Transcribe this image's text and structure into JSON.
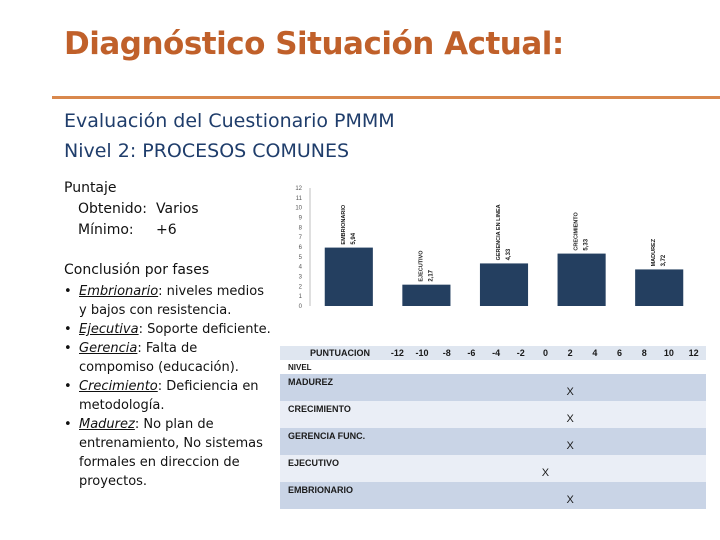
{
  "slide": {
    "title": "Diagnóstico Situación Actual:",
    "subtitle_line1": "Evaluación del Cuestionario PMMM",
    "subtitle_line2": "Nivel 2: PROCESOS COMUNES"
  },
  "score": {
    "heading": "Puntaje",
    "obtained_label": "Obtenido:",
    "obtained_value": "Varios",
    "min_label": "Mínimo:",
    "min_value": "+6"
  },
  "phases": {
    "heading": "Conclusión por fases",
    "items": [
      {
        "label": "Embrionario",
        "text": ": niveles medios y bajos con resistencia."
      },
      {
        "label": "Ejecutiva",
        "text": ": Soporte deficiente."
      },
      {
        "label": "Gerencia",
        "text": ": Falta de compomiso (educación)."
      },
      {
        "label": "Crecimiento",
        "text": ": Deficiencia en metodología."
      },
      {
        "label": "Madurez",
        "text": ": No plan de entrenamiento, No sistemas formales en direccion de proyectos."
      }
    ]
  },
  "chart_data": {
    "type": "bar",
    "title": "",
    "xlabel": "",
    "ylabel": "",
    "ylim": [
      0,
      12
    ],
    "yticks": [
      0,
      1,
      2,
      3,
      4,
      5,
      6,
      7,
      8,
      9,
      10,
      11,
      12
    ],
    "categories": [
      "EMBRIONARIO",
      "EJECUTIVO",
      "GERENCIA EN LINEA",
      "CRECIMIENTO",
      "MADUREZ"
    ],
    "values": [
      5.94,
      2.17,
      4.33,
      5.33,
      3.72
    ],
    "value_labels": [
      "5,94",
      "2,17",
      "4,33",
      "5,33",
      "3,72"
    ],
    "bar_color": "#243f60",
    "grid": false
  },
  "grid": {
    "header_label": "PUNTUACION",
    "level_label": "NIVEL",
    "columns": [
      "-12",
      "-10",
      "-8",
      "-6",
      "-4",
      "-2",
      "0",
      "2",
      "4",
      "6",
      "8",
      "10",
      "12"
    ],
    "rows": [
      {
        "name": "MADUREZ",
        "mark_col": 7,
        "mark": "X"
      },
      {
        "name": "CRECIMIENTO",
        "mark_col": 7,
        "mark": "X"
      },
      {
        "name": "GERENCIA FUNC.",
        "mark_col": 7,
        "mark": "X"
      },
      {
        "name": "EJECUTIVO",
        "mark_col": 6,
        "mark": "X"
      },
      {
        "name": "EMBRIONARIO",
        "mark_col": 7,
        "mark": "X"
      }
    ]
  },
  "colors": {
    "title": "#c0602a",
    "subtitle": "#1f3d6b",
    "rule": "#d9884d",
    "bar": "#243f60"
  }
}
